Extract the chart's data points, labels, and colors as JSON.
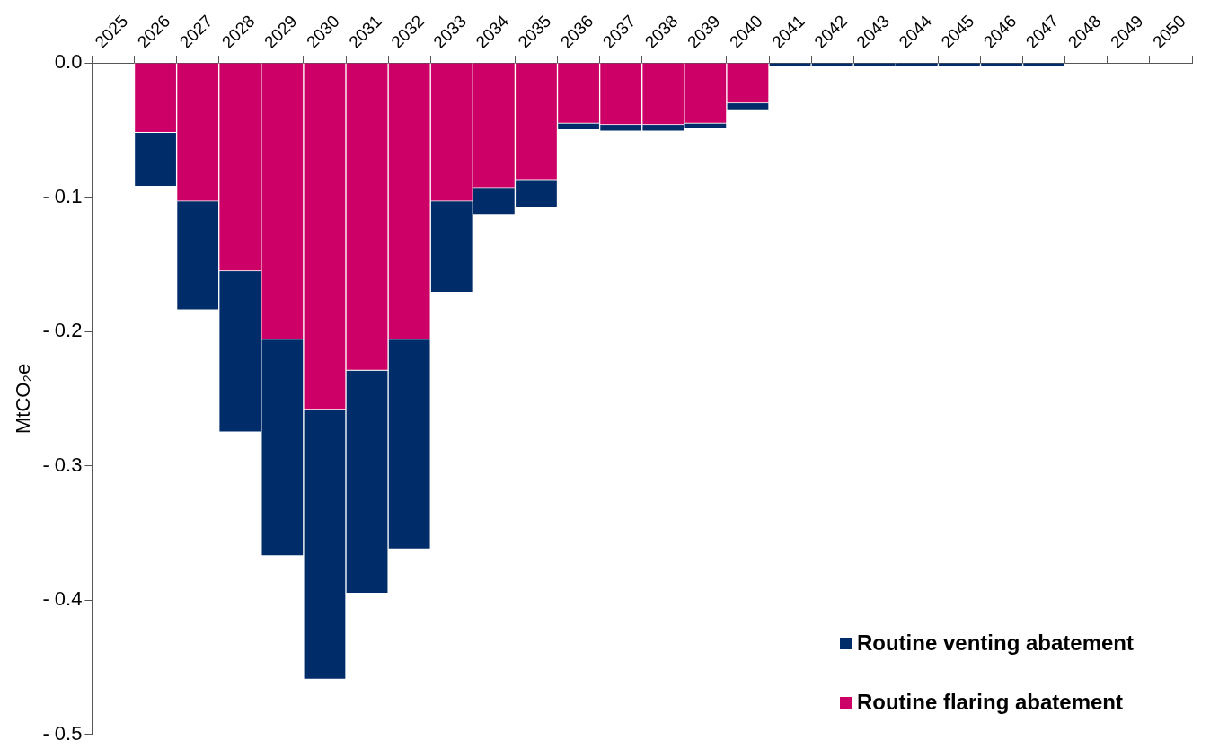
{
  "chart_data": {
    "type": "bar",
    "stacked": true,
    "ylabel": "MtCO₂e",
    "categories": [
      "2025",
      "2026",
      "2027",
      "2028",
      "2029",
      "2030",
      "2031",
      "2032",
      "2033",
      "2034",
      "2035",
      "2036",
      "2037",
      "2038",
      "2039",
      "2040",
      "2041",
      "2042",
      "2043",
      "2044",
      "2045",
      "2046",
      "2047",
      "2048",
      "2049",
      "2050"
    ],
    "series": [
      {
        "name": "Routine flaring abatement",
        "color": "#cc0066",
        "values": [
          null,
          -0.052,
          -0.103,
          -0.155,
          -0.206,
          -0.258,
          -0.229,
          -0.206,
          -0.103,
          -0.093,
          -0.087,
          -0.045,
          -0.046,
          -0.046,
          -0.045,
          -0.03,
          null,
          null,
          null,
          null,
          null,
          null,
          null,
          null,
          null,
          null
        ]
      },
      {
        "name": "Routine venting abatement",
        "color": "#002d6a",
        "values": [
          null,
          -0.04,
          -0.081,
          -0.12,
          -0.161,
          -0.201,
          -0.166,
          -0.156,
          -0.068,
          -0.02,
          -0.021,
          -0.005,
          -0.005,
          -0.005,
          -0.004,
          -0.005,
          -0.003,
          -0.003,
          -0.003,
          -0.003,
          -0.003,
          -0.003,
          -0.003,
          null,
          null,
          null
        ]
      }
    ],
    "ylim": [
      -0.5,
      0
    ],
    "yticks": [
      {
        "value": 0,
        "label": "0.0"
      },
      {
        "value": -0.1,
        "label": "- 0.1"
      },
      {
        "value": -0.2,
        "label": "- 0.2"
      },
      {
        "value": -0.3,
        "label": "- 0.3"
      },
      {
        "value": -0.4,
        "label": "- 0.4"
      },
      {
        "value": -0.5,
        "label": "- 0.5"
      }
    ],
    "legend": "bottom right",
    "grid": false
  }
}
